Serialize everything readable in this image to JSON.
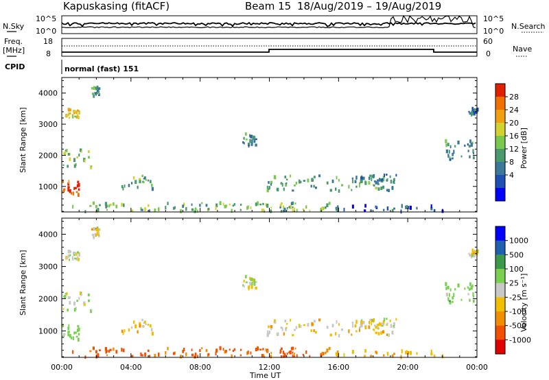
{
  "header": {
    "station": "Kapuskasing (fitACF)",
    "beam": "Beam 15",
    "dates": "18/Aug/2019 – 19/Aug/2019"
  },
  "top_panels": {
    "nsky_label": "N.Sky",
    "nsky_ticks": [
      "10^5",
      "10^0"
    ],
    "nsearch_label": "N.Search",
    "nsearch_ticks": [
      "10^5",
      "10^0"
    ],
    "freq_label": "Freq.",
    "freq_unit": "[MHz]",
    "freq_ticks": [
      "18",
      "8"
    ],
    "nave_label": "Nave",
    "nave_ticks": [
      "60",
      "0"
    ],
    "cpid_label": "CPID",
    "cpid_value": "normal (fast) 151"
  },
  "x_axis": {
    "label": "Time UT",
    "ticks": [
      "00:00",
      "04:00",
      "08:00",
      "12:00",
      "16:00",
      "20:00",
      "00:00"
    ]
  },
  "power_panel": {
    "ylabel": "Slant Range [km]",
    "yticks": [
      "4000",
      "3000",
      "2000",
      "1000"
    ],
    "colorbar_label": "Power [dB]",
    "colorbar_ticks": [
      "28",
      "24",
      "20",
      "16",
      "12",
      "8",
      "4"
    ]
  },
  "velocity_panel": {
    "ylabel": "Slant Range [km]",
    "yticks": [
      "4000",
      "3000",
      "2000",
      "1000"
    ],
    "colorbar_label": "Velocity [m s⁻¹]",
    "colorbar_ticks": [
      "1000",
      "500",
      "100",
      "25",
      "-25",
      "-100",
      "-500",
      "-1000"
    ]
  },
  "chart_data": {
    "type": "heatmap",
    "x_range_hours": [
      0,
      24
    ],
    "y_range_km": [
      180,
      4500
    ],
    "power_scale": {
      "min": 0,
      "max": 30,
      "unit": "dB"
    },
    "velocity_scale": {
      "min": -1000,
      "max": 1000,
      "unit": "m s^-1"
    },
    "power_colors": [
      "#0000ff",
      "#1e50b4",
      "#3c7898",
      "#4a9a6e",
      "#7ac850",
      "#d2d232",
      "#f0a010",
      "#f07000",
      "#e02000"
    ],
    "velocity_colors": [
      "#e00000",
      "#f05000",
      "#f09000",
      "#f0c000",
      "#c8c8c8",
      "#7ad050",
      "#3a9a4a",
      "#2060b0",
      "#0000ff"
    ],
    "echo_regions": [
      {
        "t0": 0.0,
        "t1": 1.0,
        "r0": 700,
        "r1": 1200,
        "power": 27,
        "velocity": 60
      },
      {
        "t0": 0.0,
        "t1": 1.7,
        "r0": 1600,
        "r1": 2200,
        "power": 15,
        "velocity": 20
      },
      {
        "t0": 0.0,
        "t1": 1.0,
        "r0": 3200,
        "r1": 3500,
        "power": 18,
        "velocity": 5
      },
      {
        "t0": 1.7,
        "t1": 2.2,
        "r0": 3900,
        "r1": 4200,
        "power": 10,
        "velocity": 0
      },
      {
        "t0": 3.2,
        "t1": 5.2,
        "r0": 900,
        "r1": 1350,
        "power": 13,
        "velocity": -10
      },
      {
        "t0": 10.4,
        "t1": 11.2,
        "r0": 2300,
        "r1": 2700,
        "power": 10,
        "velocity": 15
      },
      {
        "t0": 11.8,
        "t1": 19.2,
        "r0": 850,
        "r1": 1350,
        "power": 12,
        "velocity": -5
      },
      {
        "t0": 17.2,
        "t1": 19.4,
        "r0": 1100,
        "r1": 1400,
        "power": 9,
        "velocity": 5
      },
      {
        "t0": 22.0,
        "t1": 23.8,
        "r0": 1850,
        "r1": 2500,
        "power": 11,
        "velocity": 60
      },
      {
        "t0": 23.5,
        "t1": 24.0,
        "r0": 3300,
        "r1": 3500,
        "power": 8,
        "velocity": 0
      },
      {
        "t0": 0.3,
        "t1": 15.6,
        "r0": 180,
        "r1": 480,
        "power": 14,
        "velocity": -150
      },
      {
        "t0": 15.6,
        "t1": 22.0,
        "r0": 180,
        "r1": 380,
        "power": 6,
        "velocity": -30
      }
    ]
  }
}
